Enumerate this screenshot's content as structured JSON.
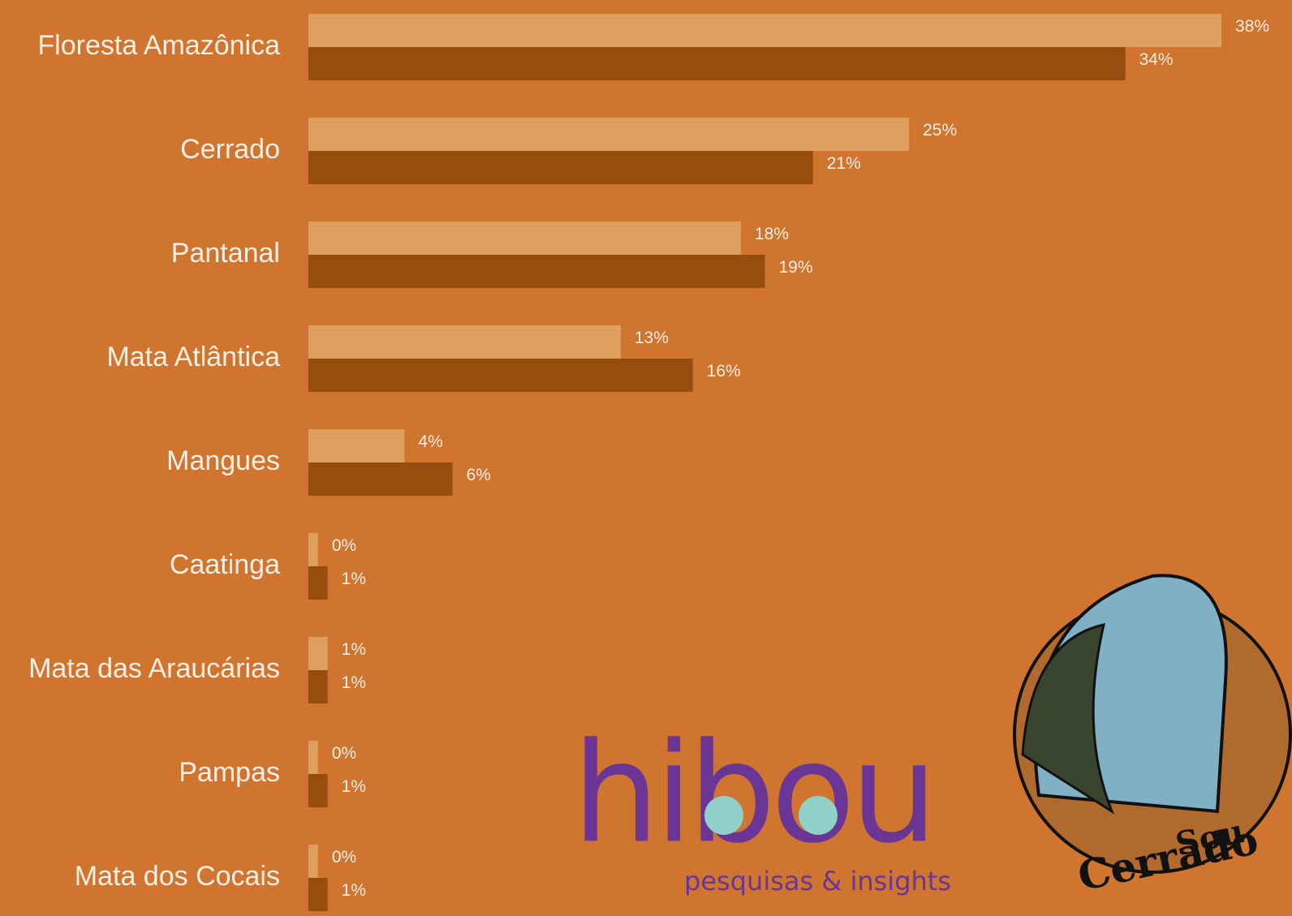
{
  "chart_data": {
    "type": "bar",
    "orientation": "horizontal",
    "categories": [
      "Floresta Amazônica",
      "Cerrado",
      "Pantanal",
      "Mata Atlântica",
      "Mangues",
      "Caatinga",
      "Mata das Araucárias",
      "Pampas",
      "Mata dos Cocais"
    ],
    "series": [
      {
        "color": "#dda05e",
        "values": [
          38,
          25,
          18,
          13,
          4,
          0.4,
          0.8,
          0.4,
          0.4
        ],
        "value_labels": [
          "38%",
          "25%",
          "18%",
          "13%",
          "4%",
          "0%",
          "1%",
          "0%",
          "0%"
        ]
      },
      {
        "color": "#964d0e",
        "values": [
          34,
          21,
          19,
          16,
          6,
          0.8,
          0.8,
          0.8,
          0.8
        ],
        "value_labels": [
          "34%",
          "21%",
          "19%",
          "16%",
          "6%",
          "1%",
          "1%",
          "1%",
          "1%"
        ]
      }
    ],
    "xlim": [
      0,
      38
    ],
    "background": "#d07530"
  },
  "logo": {
    "name": "hibou",
    "tagline": "pesquisas & insights"
  },
  "badge": {
    "line1": "Sou",
    "line2": "Cerrado"
  }
}
